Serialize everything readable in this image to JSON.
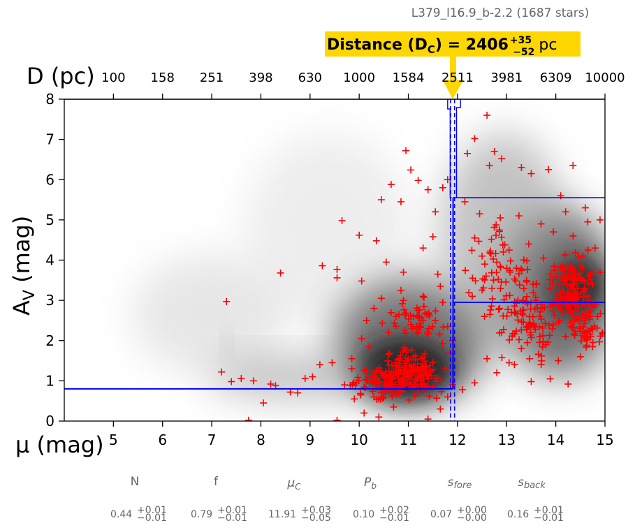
{
  "chart_data": {
    "type": "scatter",
    "header": "L379_l16.9_b-2.2 (1687 stars)",
    "distance_label": {
      "prefix": "Distance (D",
      "subscript": "C",
      "suffix": ") = ",
      "value": "2406",
      "err_plus": "+35",
      "err_minus": "−52",
      "unit": "pc"
    },
    "xlabel": "μ (mag)",
    "ylabel": "A",
    "ylabel_sub": "V",
    "ylabel_suffix": " (mag)",
    "top_axis_label": "D (pc)",
    "xlim": [
      4,
      15
    ],
    "ylim": [
      0,
      8
    ],
    "x_ticks": [
      5,
      6,
      7,
      8,
      9,
      10,
      11,
      12,
      13,
      14,
      15
    ],
    "y_ticks": [
      0,
      1,
      2,
      3,
      4,
      5,
      6,
      7,
      8
    ],
    "top_ticks": [
      {
        "mu": 5,
        "label": "100"
      },
      {
        "mu": 6,
        "label": "158"
      },
      {
        "mu": 7,
        "label": "251"
      },
      {
        "mu": 8,
        "label": "398"
      },
      {
        "mu": 9,
        "label": "630"
      },
      {
        "mu": 10,
        "label": "1000"
      },
      {
        "mu": 11,
        "label": "1584"
      },
      {
        "mu": 12,
        "label": "2511"
      },
      {
        "mu": 13,
        "label": "3981"
      },
      {
        "mu": 14,
        "label": "6309"
      },
      {
        "mu": 15,
        "label": "10000"
      }
    ],
    "model": {
      "mu_c": 11.91,
      "mu_c_lo": 11.86,
      "mu_c_hi": 11.94,
      "foreground_av": 0.8,
      "background_av": 2.95,
      "background_upper": 5.55
    },
    "highlight_color": "#ffd700",
    "point_color": "#ff0000",
    "model_color": "#0000ff",
    "parameters": [
      {
        "name": "N",
        "value": "0.44",
        "plus": "+0.01",
        "minus": "−0.01"
      },
      {
        "name": "f",
        "value": "0.79",
        "plus": "+0.01",
        "minus": "−0.01"
      },
      {
        "name": "μ",
        "sub": "C",
        "value": "11.91",
        "plus": "+0.03",
        "minus": "−0.05"
      },
      {
        "name": "P",
        "sub": "b",
        "value": "0.10",
        "plus": "+0.02",
        "minus": "−0.01"
      },
      {
        "name": "s",
        "sub": "fore",
        "value": "0.07",
        "plus": "+0.00",
        "minus": "−0.00"
      },
      {
        "name": "s",
        "sub": "back",
        "value": "0.16",
        "plus": "+0.01",
        "minus": "−0.01"
      }
    ],
    "stars": [
      [
        7.3,
        2.97
      ],
      [
        7.2,
        1.22
      ],
      [
        7.4,
        0.98
      ],
      [
        7.6,
        1.06
      ],
      [
        7.85,
        1.0
      ],
      [
        7.75,
        0.02
      ],
      [
        8.05,
        0.45
      ],
      [
        8.2,
        0.92
      ],
      [
        8.4,
        3.68
      ],
      [
        8.3,
        0.88
      ],
      [
        8.6,
        0.72
      ],
      [
        8.75,
        0.7
      ],
      [
        8.9,
        1.06
      ],
      [
        9.05,
        1.1
      ],
      [
        9.2,
        1.4
      ],
      [
        9.25,
        3.86
      ],
      [
        9.55,
        3.77
      ],
      [
        9.55,
        3.56
      ],
      [
        9.45,
        1.45
      ],
      [
        9.65,
        4.98
      ],
      [
        9.85,
        1.3
      ],
      [
        10.05,
        3.48
      ],
      [
        10.0,
        4.62
      ],
      [
        10.35,
        4.48
      ],
      [
        10.45,
        5.5
      ],
      [
        10.65,
        5.88
      ],
      [
        10.85,
        5.45
      ],
      [
        10.95,
        6.72
      ],
      [
        11.05,
        6.24
      ],
      [
        11.2,
        5.98
      ],
      [
        11.4,
        5.75
      ],
      [
        11.55,
        5.2
      ],
      [
        11.7,
        5.8
      ],
      [
        11.8,
        6.0
      ],
      [
        11.3,
        4.3
      ],
      [
        11.5,
        4.58
      ],
      [
        11.6,
        3.65
      ],
      [
        10.9,
        3.7
      ],
      [
        10.55,
        3.95
      ],
      [
        12.2,
        6.65
      ],
      [
        12.35,
        7.02
      ],
      [
        12.6,
        7.6
      ],
      [
        12.65,
        6.35
      ],
      [
        12.75,
        6.7
      ],
      [
        12.9,
        6.52
      ],
      [
        13.3,
        6.3
      ],
      [
        13.5,
        6.15
      ],
      [
        13.85,
        6.25
      ],
      [
        14.35,
        6.35
      ],
      [
        14.1,
        5.6
      ],
      [
        14.6,
        5.3
      ],
      [
        14.9,
        5.0
      ],
      [
        12.15,
        5.45
      ],
      [
        12.35,
        4.55
      ],
      [
        12.5,
        4.1
      ],
      [
        12.8,
        3.95
      ],
      [
        13.05,
        4.25
      ],
      [
        13.2,
        3.8
      ],
      [
        13.45,
        4.4
      ],
      [
        13.6,
        3.4
      ],
      [
        13.75,
        4.05
      ],
      [
        12.3,
        3.1
      ],
      [
        12.55,
        2.6
      ],
      [
        12.7,
        3.3
      ],
      [
        12.9,
        2.2
      ],
      [
        13.1,
        2.7
      ],
      [
        13.3,
        1.8
      ],
      [
        13.55,
        2.4
      ],
      [
        13.8,
        1.9
      ],
      [
        14.05,
        1.5
      ],
      [
        14.2,
        2.1
      ],
      [
        14.5,
        1.6
      ],
      [
        14.75,
        1.85
      ],
      [
        14.95,
        2.2
      ],
      [
        14.25,
        0.92
      ],
      [
        13.5,
        0.98
      ],
      [
        12.8,
        1.2
      ],
      [
        12.35,
        0.95
      ],
      [
        12.1,
        0.78
      ],
      [
        12.6,
        1.55
      ],
      [
        13.05,
        1.45
      ],
      [
        14.6,
        2.9
      ],
      [
        14.45,
        3.3
      ],
      [
        14.15,
        3.5
      ],
      [
        14.7,
        3.65
      ],
      [
        14.85,
        2.6
      ],
      [
        14.3,
        2.45
      ],
      [
        14.0,
        3.0
      ],
      [
        13.9,
        3.65
      ],
      [
        14.55,
        4.1
      ],
      [
        14.8,
        4.3
      ],
      [
        14.35,
        4.6
      ],
      [
        13.95,
        4.7
      ],
      [
        14.65,
        4.95
      ],
      [
        14.2,
        5.2
      ],
      [
        13.7,
        4.9
      ],
      [
        13.25,
        5.1
      ],
      [
        12.85,
        4.75
      ],
      [
        12.45,
        5.15
      ],
      [
        13.6,
        2.95
      ],
      [
        14.4,
        2.6
      ],
      [
        14.1,
        2.8
      ],
      [
        14.6,
        3.1
      ],
      [
        14.3,
        3.85
      ],
      [
        14.75,
        3.4
      ],
      [
        14.9,
        3.7
      ],
      [
        14.5,
        2.3
      ],
      [
        10.05,
        2.05
      ],
      [
        10.15,
        2.5
      ],
      [
        10.3,
        2.8
      ],
      [
        10.45,
        3.05
      ],
      [
        10.6,
        2.2
      ],
      [
        10.75,
        2.6
      ],
      [
        10.9,
        3.0
      ],
      [
        11.05,
        2.4
      ],
      [
        11.2,
        2.75
      ],
      [
        11.4,
        2.15
      ],
      [
        11.55,
        2.5
      ],
      [
        11.7,
        2.95
      ],
      [
        11.8,
        2.35
      ],
      [
        11.65,
        3.35
      ],
      [
        11.3,
        3.1
      ],
      [
        10.85,
        3.25
      ],
      [
        10.2,
        1.85
      ],
      [
        9.85,
        1.55
      ],
      [
        9.7,
        0.9
      ],
      [
        9.9,
        0.55
      ],
      [
        10.1,
        0.2
      ],
      [
        9.55,
        0.02
      ],
      [
        10.4,
        0.1
      ],
      [
        11.4,
        0.05
      ],
      [
        11.65,
        0.3
      ],
      [
        11.8,
        0.6
      ],
      [
        11.75,
        1.3
      ],
      [
        11.85,
        1.7
      ],
      [
        11.9,
        2.0
      ],
      [
        11.5,
        0.85
      ],
      [
        10.7,
        0.35
      ],
      [
        10.3,
        0.6
      ]
    ]
  }
}
